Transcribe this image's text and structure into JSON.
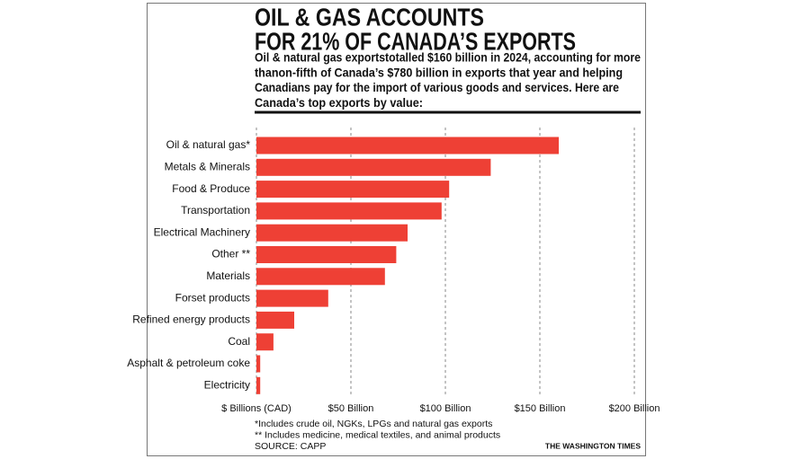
{
  "chart_data": {
    "type": "bar",
    "orientation": "horizontal",
    "title": [
      "OIL &  GAS ACCOUNTS",
      "FOR 21% OF CANADA’S EXPORTS"
    ],
    "subtitle": [
      "Oil & natural gas exportstotalled $160 billion in 2024, accounting for more",
      "thanon-fifth of Canada’s $780 billion in exports that year and helping",
      "Canadians pay for the import of various goods and services. Here are",
      "Canada’s top exports by value:"
    ],
    "categories": [
      "Oil & natural gas*",
      "Metals & Minerals",
      "Food & Produce",
      "Transportation",
      "Electrical Machinery",
      "Other **",
      "Materials",
      "Forset  products",
      "Refined energy products",
      "Coal",
      "Asphalt & petroleum coke",
      "Electricity"
    ],
    "values": [
      160,
      124,
      102,
      98,
      80,
      74,
      68,
      38,
      20,
      9,
      2,
      2
    ],
    "color": "#ee4035",
    "xlim": [
      0,
      200
    ],
    "xticks": [
      {
        "value": 0,
        "label": "$ Billions (CAD)"
      },
      {
        "value": 50,
        "label": "$50 Billion"
      },
      {
        "value": 100,
        "label": "$100 Billion"
      },
      {
        "value": 150,
        "label": "$150 Billion"
      },
      {
        "value": 200,
        "label": "$200 Billion"
      }
    ],
    "grid": true,
    "notes": [
      "*Includes crude oil, NGKs, LPGs and natural gas exports",
      "** Includes medicine, medical textiles, and animal products",
      "SOURCE: CAPP"
    ],
    "credit": "THE WASHINGTON TIMES"
  }
}
